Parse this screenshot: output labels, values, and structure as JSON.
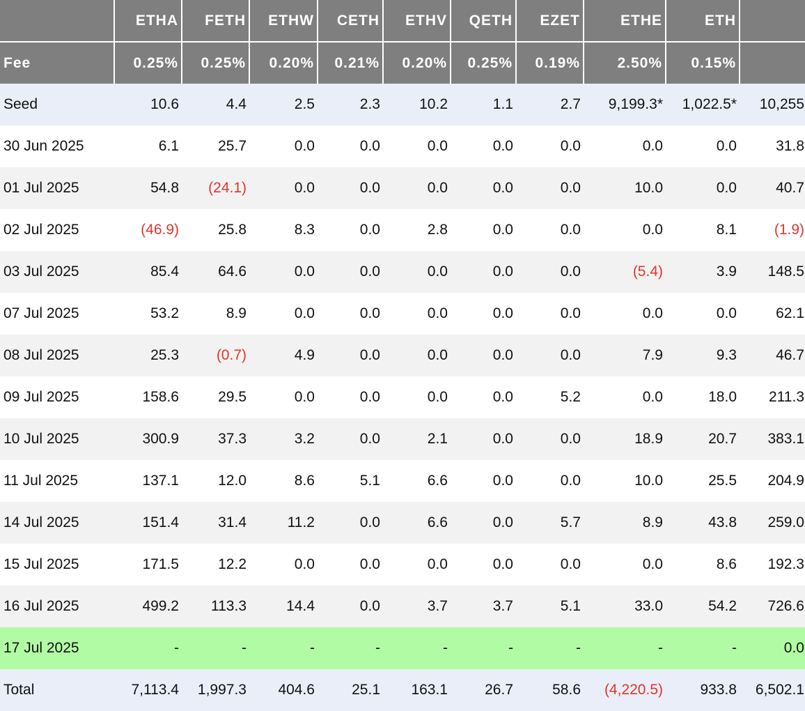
{
  "columns": [
    "",
    "ETHA",
    "FETH",
    "ETHW",
    "CETH",
    "ETHV",
    "QETH",
    "EZET",
    "ETHE",
    "ETH",
    ""
  ],
  "fees": {
    "label": "Fee",
    "values": [
      "0.25%",
      "0.25%",
      "0.20%",
      "0.21%",
      "0.20%",
      "0.25%",
      "0.19%",
      "2.50%",
      "0.15%",
      ""
    ]
  },
  "rows": [
    {
      "label": "Seed",
      "values": [
        "10.6",
        "4.4",
        "2.5",
        "2.3",
        "10.2",
        "1.1",
        "2.7",
        "9,199.3*",
        "1,022.5*",
        "10,255"
      ]
    },
    {
      "label": "30 Jun 2025",
      "values": [
        "6.1",
        "25.7",
        "0.0",
        "0.0",
        "0.0",
        "0.0",
        "0.0",
        "0.0",
        "0.0",
        "31.8"
      ]
    },
    {
      "label": "01 Jul 2025",
      "values": [
        "54.8",
        "(24.1)",
        "0.0",
        "0.0",
        "0.0",
        "0.0",
        "0.0",
        "10.0",
        "0.0",
        "40.7"
      ]
    },
    {
      "label": "02 Jul 2025",
      "values": [
        "(46.9)",
        "25.8",
        "8.3",
        "0.0",
        "2.8",
        "0.0",
        "0.0",
        "0.0",
        "8.1",
        "(1.9)"
      ]
    },
    {
      "label": "03 Jul 2025",
      "values": [
        "85.4",
        "64.6",
        "0.0",
        "0.0",
        "0.0",
        "0.0",
        "0.0",
        "(5.4)",
        "3.9",
        "148.5"
      ]
    },
    {
      "label": "07 Jul 2025",
      "values": [
        "53.2",
        "8.9",
        "0.0",
        "0.0",
        "0.0",
        "0.0",
        "0.0",
        "0.0",
        "0.0",
        "62.1"
      ]
    },
    {
      "label": "08 Jul 2025",
      "values": [
        "25.3",
        "(0.7)",
        "4.9",
        "0.0",
        "0.0",
        "0.0",
        "0.0",
        "7.9",
        "9.3",
        "46.7"
      ]
    },
    {
      "label": "09 Jul 2025",
      "values": [
        "158.6",
        "29.5",
        "0.0",
        "0.0",
        "0.0",
        "0.0",
        "5.2",
        "0.0",
        "18.0",
        "211.3"
      ]
    },
    {
      "label": "10 Jul 2025",
      "values": [
        "300.9",
        "37.3",
        "3.2",
        "0.0",
        "2.1",
        "0.0",
        "0.0",
        "18.9",
        "20.7",
        "383.1"
      ]
    },
    {
      "label": "11 Jul 2025",
      "values": [
        "137.1",
        "12.0",
        "8.6",
        "5.1",
        "6.6",
        "0.0",
        "0.0",
        "10.0",
        "25.5",
        "204.9"
      ]
    },
    {
      "label": "14 Jul 2025",
      "values": [
        "151.4",
        "31.4",
        "11.2",
        "0.0",
        "6.6",
        "0.0",
        "5.7",
        "8.9",
        "43.8",
        "259.0"
      ]
    },
    {
      "label": "15 Jul 2025",
      "values": [
        "171.5",
        "12.2",
        "0.0",
        "0.0",
        "0.0",
        "0.0",
        "0.0",
        "0.0",
        "8.6",
        "192.3"
      ]
    },
    {
      "label": "16 Jul 2025",
      "values": [
        "499.2",
        "113.3",
        "14.4",
        "0.0",
        "3.7",
        "3.7",
        "5.1",
        "33.0",
        "54.2",
        "726.6"
      ]
    },
    {
      "label": "17 Jul 2025",
      "values": [
        "-",
        "-",
        "-",
        "-",
        "-",
        "-",
        "-",
        "-",
        "-",
        "0.0"
      ]
    }
  ],
  "total": {
    "label": "Total",
    "values": [
      "7,113.4",
      "1,997.3",
      "404.6",
      "25.1",
      "163.1",
      "26.7",
      "58.6",
      "(4,220.5)",
      "933.8",
      "6,502.1"
    ]
  },
  "colors": {
    "header_bg": "#7f7f7f",
    "seed_total_bg": "#e9eef8",
    "stripe_bg": "#f2f2f2",
    "latest_row_bg": "#b2fba5",
    "negative_text": "#e0352b"
  }
}
